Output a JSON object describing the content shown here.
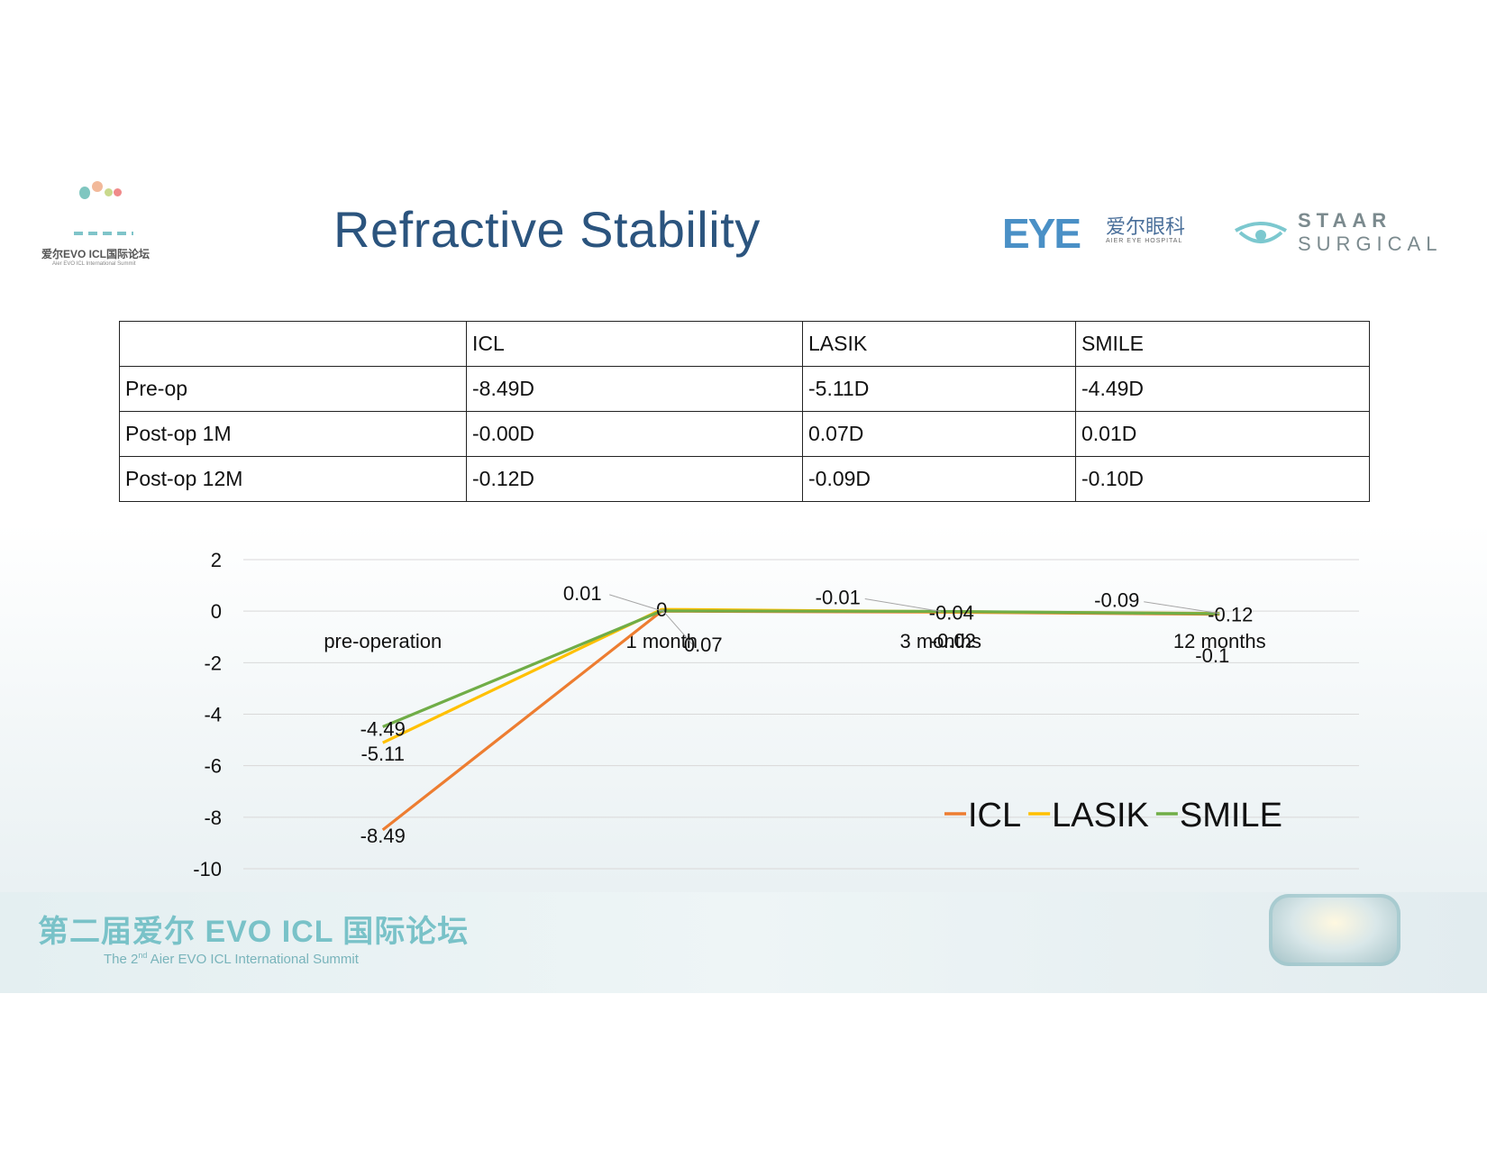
{
  "slide": {
    "title": "Refractive Stability"
  },
  "logos": {
    "summit_cn": "爱尔EVO ICL国际论坛",
    "summit_en": "Aier EVO ICL International Summit",
    "eye_mark": "EYE",
    "eye_cn": "爱尔眼科",
    "eye_en": "AIER EYE HOSPITAL",
    "staar_top": "STAAR",
    "staar_bottom": "SURGICAL"
  },
  "table": {
    "headers": [
      "",
      "ICL",
      "LASIK",
      "SMILE"
    ],
    "rows": [
      [
        "Pre-op",
        "-8.49D",
        "-5.11D",
        "-4.49D"
      ],
      [
        "Post-op 1M",
        "-0.00D",
        "0.07D",
        "0.01D"
      ],
      [
        "Post-op 12M",
        "-0.12D",
        "-0.09D",
        "-0.10D"
      ]
    ]
  },
  "footer": {
    "cn": "第二届爱尔 EVO ICL 国际论坛",
    "en_prefix": "The 2",
    "en_sup": "nd",
    "en_suffix": " Aier EVO ICL International Summit"
  },
  "chart_data": {
    "type": "line",
    "categories": [
      "pre-operation",
      "1 month",
      "3 months",
      "12 months"
    ],
    "ylim": [
      -10,
      2
    ],
    "yticks": [
      2,
      0,
      -2,
      -4,
      -6,
      -8,
      -10
    ],
    "grid": true,
    "legend_position": "bottom-right",
    "series": [
      {
        "name": "ICL",
        "color": "#ed7d31",
        "values": [
          -8.49,
          0,
          -0.04,
          -0.12
        ],
        "labels": [
          "-8.49",
          "0",
          "-0.04",
          "-0.12"
        ]
      },
      {
        "name": "LASIK",
        "color": "#ffc000",
        "values": [
          -5.11,
          0.07,
          -0.02,
          -0.09
        ],
        "labels": [
          "-5.11",
          "0.07",
          "-0.02",
          "-0.09"
        ]
      },
      {
        "name": "SMILE",
        "color": "#70ad47",
        "values": [
          -4.49,
          0.01,
          -0.01,
          -0.1
        ],
        "labels": [
          "-4.49",
          "0.01",
          "-0.01",
          "-0.1"
        ]
      }
    ]
  }
}
